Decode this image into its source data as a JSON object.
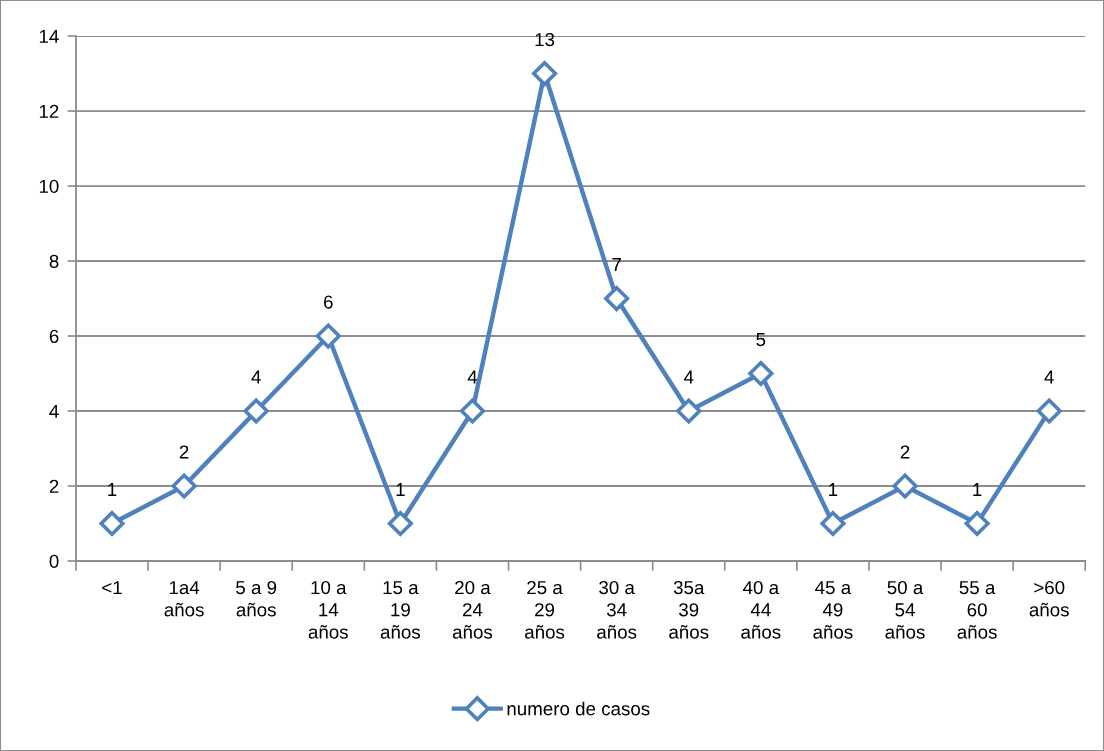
{
  "chart_data": {
    "type": "line",
    "categories": [
      "<1",
      "1a4\naños",
      "5 a 9\naños",
      "10 a\n14\naños",
      "15 a\n19\naños",
      "20 a\n24\naños",
      "25 a\n29\naños",
      "30 a\n34\naños",
      "35a\n39\naños",
      "40 a\n44\naños",
      "45 a\n49\naños",
      "50 a\n54\naños",
      "55 a\n60\naños",
      ">60\naños"
    ],
    "series": [
      {
        "name": "numero de casos",
        "color": "#4f81bd",
        "values": [
          1,
          2,
          4,
          6,
          1,
          4,
          13,
          7,
          4,
          5,
          1,
          2,
          1,
          4
        ]
      }
    ],
    "ylim": [
      0,
      14
    ],
    "yticks": [
      0,
      2,
      4,
      6,
      8,
      10,
      12,
      14
    ],
    "grid": "y",
    "legend": "bottom",
    "marker": "diamond",
    "line_style": "solid",
    "data_labels": true
  }
}
